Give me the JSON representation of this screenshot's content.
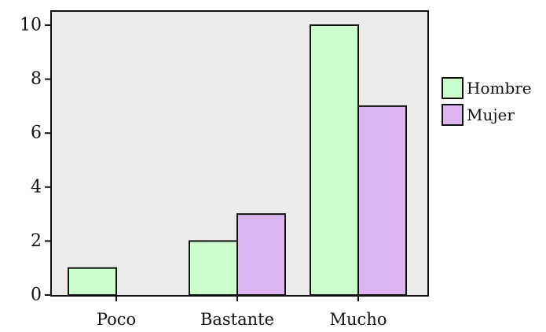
{
  "chart_data": {
    "type": "bar",
    "categories": [
      "Poco",
      "Bastante",
      "Mucho"
    ],
    "series": [
      {
        "name": "Hombre",
        "values": [
          1,
          2,
          10
        ],
        "color": "#ccffcc"
      },
      {
        "name": "Mujer",
        "values": [
          0,
          3,
          7
        ],
        "color": "#dcb4f0"
      }
    ],
    "yticks": [
      "0",
      "2",
      "4",
      "6",
      "8",
      "10"
    ],
    "ylim": [
      0,
      10
    ],
    "grid": false,
    "legend_position": "right",
    "plot_background": "#ebebeb",
    "title": "",
    "xlabel": "",
    "ylabel": ""
  }
}
